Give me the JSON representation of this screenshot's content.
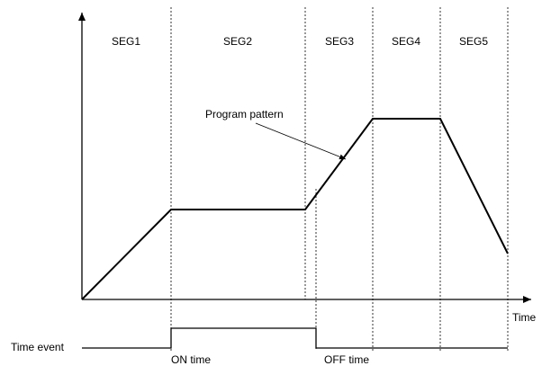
{
  "segments": [
    "SEG1",
    "SEG2",
    "SEG3",
    "SEG4",
    "SEG5"
  ],
  "labels": {
    "program_pattern": "Program pattern",
    "time_axis": "Time",
    "time_event": "Time event",
    "on_time": "ON time",
    "off_time": "OFF time"
  },
  "colors": {
    "line": "#000000",
    "background": "#ffffff"
  }
}
